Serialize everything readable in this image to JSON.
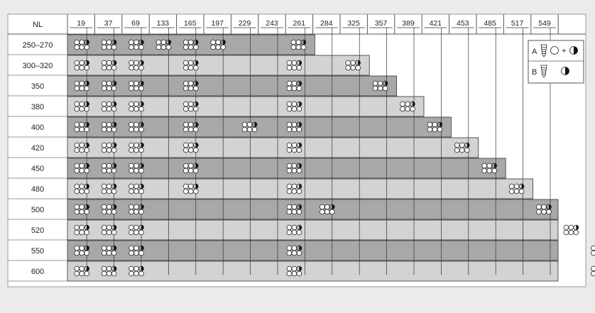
{
  "header_label": "NL",
  "columns": [
    "19",
    "37",
    "69",
    "133",
    "165",
    "197",
    "229",
    "243",
    "261",
    "284",
    "325",
    "357",
    "389",
    "421",
    "453",
    "485",
    "517",
    "549"
  ],
  "rows": [
    {
      "label": "250–270",
      "length": 261
    },
    {
      "label": "300–320",
      "length": 325
    },
    {
      "label": "350",
      "length": 357
    },
    {
      "label": "380",
      "length": 389
    },
    {
      "label": "400",
      "length": 421
    },
    {
      "label": "420",
      "length": 453
    },
    {
      "label": "450",
      "length": 485
    },
    {
      "label": "480",
      "length": 517
    },
    {
      "label": "500",
      "length": 549
    },
    {
      "label": "520",
      "length": 581
    },
    {
      "label": "550",
      "length": 613
    },
    {
      "label": "600",
      "length": 613
    }
  ],
  "legend": {
    "a_label": "A",
    "b_label": "B",
    "plus": "+"
  },
  "colors": {
    "page_bg": "#ebebeb",
    "table_bg": "#ffffff",
    "bar_dark": "#a8a8a8",
    "bar_light": "#d3d3d3",
    "line": "#333333"
  }
}
